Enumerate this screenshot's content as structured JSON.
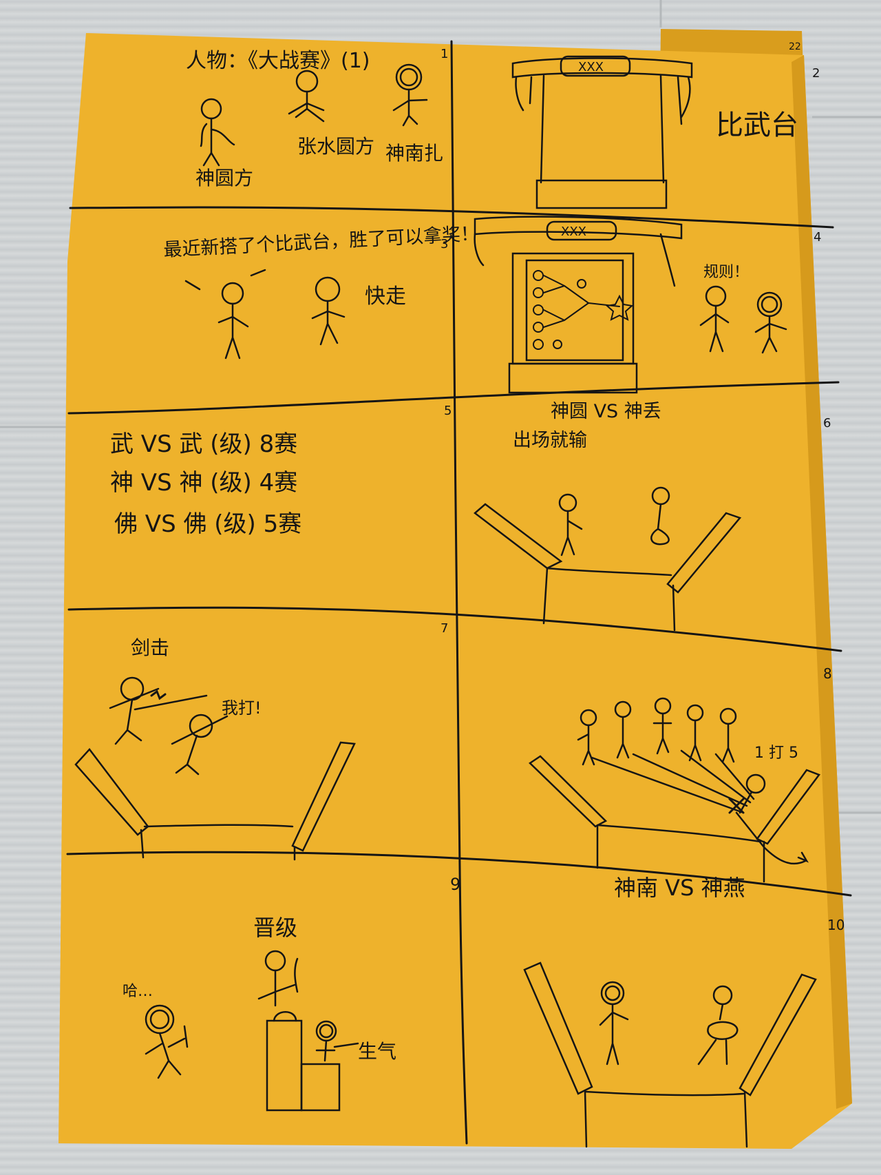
{
  "colors": {
    "paper": "#eeb22c",
    "paper_shadow": "#d79c1d",
    "ink": "#151515",
    "floor": "#cfd3d4"
  },
  "comic": {
    "page_marks": [
      "22",
      "2"
    ],
    "panels": [
      {
        "number": "1",
        "title": "人物：《大战赛》(1)",
        "labels": [
          "神圆方",
          "张水圆方",
          "神南扎"
        ]
      },
      {
        "number": "2",
        "sign": "XXX",
        "labels": [
          "比武台"
        ]
      },
      {
        "number": "3",
        "speech": [
          "最近新搭了个比武台，胜了可以拿奖！",
          "快走"
        ]
      },
      {
        "number": "4",
        "sign": "XXX",
        "speech": [
          "规则！"
        ]
      },
      {
        "number": "5",
        "lines": [
          "武 VS 武 (级) 8赛",
          "神 VS 神 (级) 4赛",
          "佛 VS 佛 (级) 5赛"
        ]
      },
      {
        "number": "6",
        "lines": [
          "神圆 VS 神丢",
          "出场就输"
        ]
      },
      {
        "number": "7",
        "speech": [
          "剑击",
          "我打!"
        ]
      },
      {
        "number": "8",
        "speech": [
          "1 打 5"
        ]
      },
      {
        "number": "9",
        "speech": [
          "晋级",
          "哈…",
          "生气"
        ]
      },
      {
        "number": "10",
        "lines": [
          "神南 VS 神燕"
        ]
      }
    ]
  }
}
